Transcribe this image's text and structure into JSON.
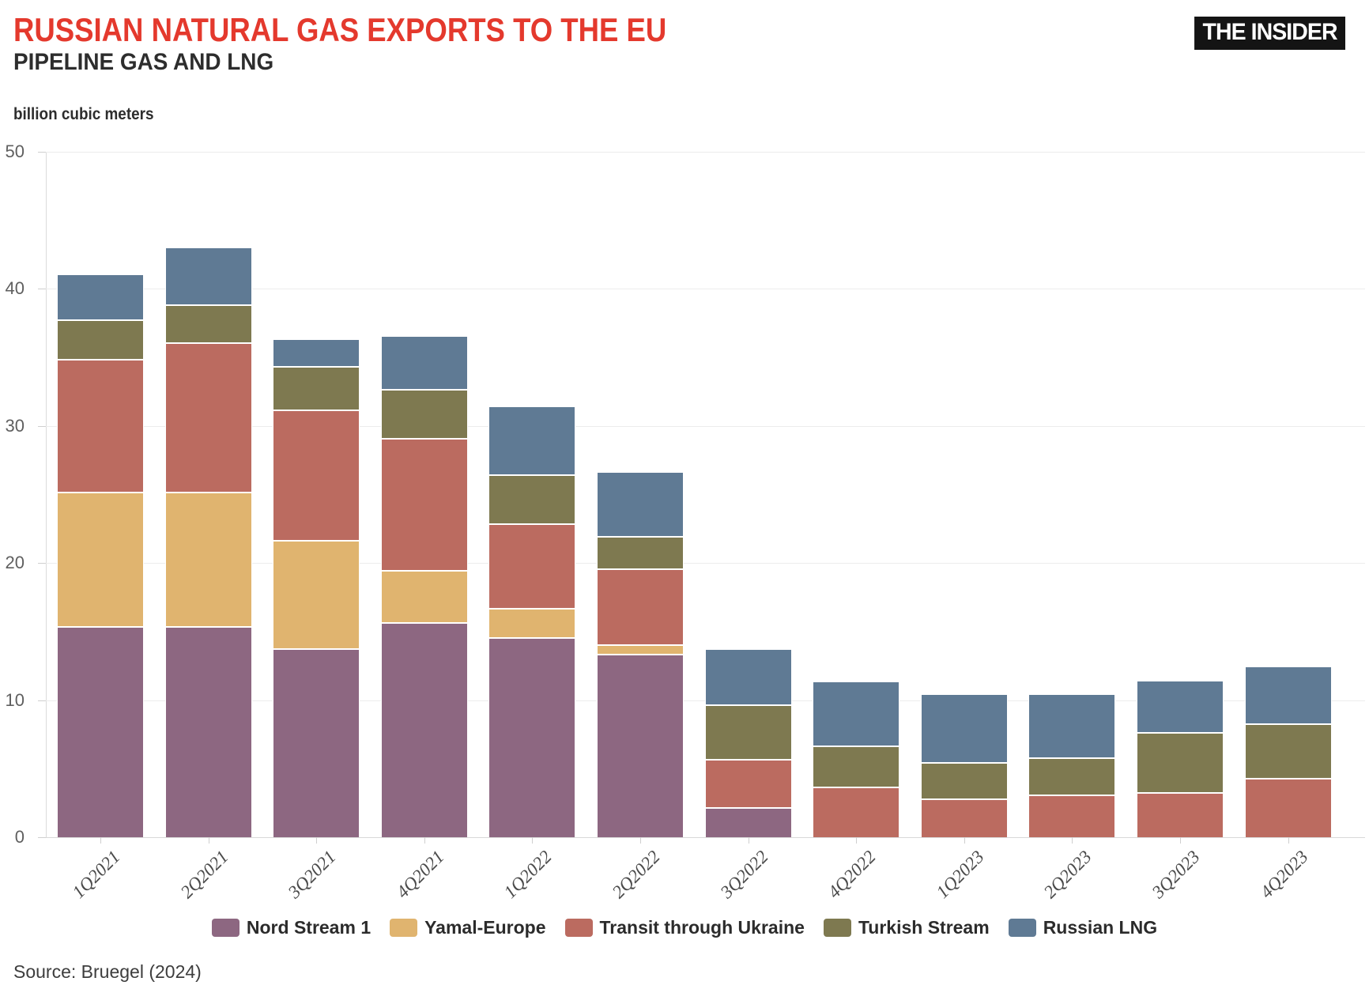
{
  "header": {
    "title": "RUSSIAN NATURAL GAS EXPORTS TO THE EU",
    "subtitle": "PIPELINE GAS AND LNG",
    "logo": "THE INSIDER"
  },
  "source": "Source: Bruegel (2024)",
  "chart_data": {
    "type": "bar",
    "stacked": true,
    "title": "RUSSIAN NATURAL GAS EXPORTS TO THE EU",
    "subtitle": "PIPELINE GAS AND LNG",
    "ylabel": "billion cubic meters",
    "xlabel": "",
    "ylim": [
      0,
      50
    ],
    "y_ticks": [
      0,
      10,
      20,
      30,
      40,
      50
    ],
    "grid": "horizontal",
    "legend_position": "bottom",
    "categories": [
      "1Q2021",
      "2Q2021",
      "3Q2021",
      "4Q2021",
      "1Q2022",
      "2Q2022",
      "3Q2022",
      "4Q2022",
      "1Q2023",
      "2Q2023",
      "3Q2023",
      "4Q2023"
    ],
    "series": [
      {
        "name": "Nord Stream 1",
        "color": "#8d6781",
        "values": [
          15.4,
          15.4,
          13.8,
          15.7,
          14.6,
          13.4,
          2.2,
          0,
          0,
          0,
          0,
          0
        ]
      },
      {
        "name": "Yamal-Europe",
        "color": "#e0b46f",
        "values": [
          9.8,
          9.8,
          7.9,
          3.8,
          2.1,
          0.7,
          0,
          0,
          0,
          0,
          0,
          0
        ]
      },
      {
        "name": "Transit through Ukraine",
        "color": "#bb6b60",
        "values": [
          9.7,
          10.9,
          9.5,
          9.6,
          6.2,
          5.5,
          3.5,
          3.7,
          2.8,
          3.1,
          3.3,
          4.3
        ]
      },
      {
        "name": "Turkish Stream",
        "color": "#7e7950",
        "values": [
          2.9,
          2.8,
          3.2,
          3.6,
          3.6,
          2.4,
          4.0,
          3.0,
          2.7,
          2.7,
          4.4,
          4.0
        ]
      },
      {
        "name": "Russian LNG",
        "color": "#5f7a94",
        "values": [
          3.3,
          4.2,
          2.0,
          3.9,
          5.0,
          4.7,
          4.1,
          4.7,
          5.0,
          4.7,
          3.8,
          4.2
        ]
      }
    ],
    "totals": [
      41.1,
      43.1,
      36.4,
      36.6,
      31.5,
      26.7,
      13.8,
      11.4,
      10.5,
      10.5,
      11.5,
      12.5
    ]
  },
  "accent_colors": {
    "title_red": "#e4392d",
    "logo_background": "#141414",
    "gridline": "#ececec",
    "axis_text": "#5f5f5f"
  }
}
